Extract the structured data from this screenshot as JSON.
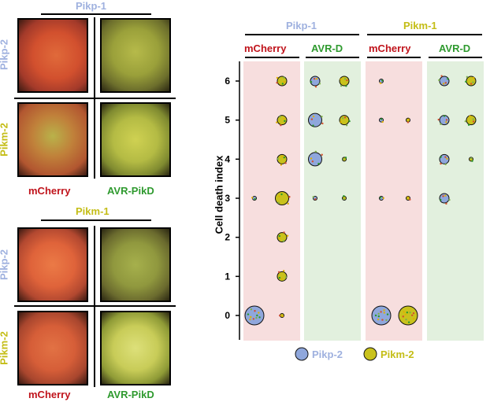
{
  "colors": {
    "pikp": "#9fb1df",
    "pikm": "#c4bd16",
    "mcherry": "#c0141c",
    "avr": "#2f9a2f",
    "mcherry_bg": "#f7dede",
    "avr_bg": "#e2f0de",
    "pikp_fill": "#8fa7dc",
    "pikm_fill": "#c9c21c"
  },
  "left_panels": {
    "top": {
      "title": "Pikp-1",
      "row1": "Pikp-2",
      "row2": "Pikm-2",
      "col1": "mCherry",
      "col2": "AVR-PikD"
    },
    "bottom": {
      "title": "Pikm-1",
      "row1": "Pikp-2",
      "row2": "Pikm-2",
      "col1": "mCherry",
      "col2": "AVR-PikD"
    }
  },
  "chart_data": {
    "type": "scatter",
    "ylabel": "Cell death index",
    "ylim": [
      0,
      6
    ],
    "yticks": [
      "0",
      "1",
      "2",
      "3",
      "4",
      "5",
      "6"
    ],
    "groups": [
      {
        "title": "Pikp-1",
        "subgroups": [
          "mCherry",
          "AVR-D"
        ]
      },
      {
        "title": "Pikm-1",
        "subgroups": [
          "mCherry",
          "AVR-D"
        ]
      }
    ],
    "legend": [
      "Pikp-2",
      "Pikm-2"
    ],
    "legend_position": "bottom",
    "columns": [
      {
        "group": "Pikp-1",
        "treatment": "mCherry",
        "receptor": "Pikp-2",
        "points": [
          {
            "y": 0,
            "size": "large"
          },
          {
            "y": 3,
            "size": "tiny"
          }
        ]
      },
      {
        "group": "Pikp-1",
        "treatment": "mCherry",
        "receptor": "Pikm-2",
        "points": [
          {
            "y": 0,
            "size": "tiny"
          },
          {
            "y": 1,
            "size": "small"
          },
          {
            "y": 2,
            "size": "small"
          },
          {
            "y": 3,
            "size": "medium"
          },
          {
            "y": 4,
            "size": "small"
          },
          {
            "y": 5,
            "size": "small"
          },
          {
            "y": 6,
            "size": "small"
          }
        ]
      },
      {
        "group": "Pikp-1",
        "treatment": "AVR-D",
        "receptor": "Pikp-2",
        "points": [
          {
            "y": 3,
            "size": "tiny"
          },
          {
            "y": 4,
            "size": "medium"
          },
          {
            "y": 5,
            "size": "medium"
          },
          {
            "y": 6,
            "size": "small"
          }
        ]
      },
      {
        "group": "Pikp-1",
        "treatment": "AVR-D",
        "receptor": "Pikm-2",
        "points": [
          {
            "y": 3,
            "size": "tiny"
          },
          {
            "y": 4,
            "size": "tiny"
          },
          {
            "y": 5,
            "size": "small"
          },
          {
            "y": 6,
            "size": "small"
          }
        ]
      },
      {
        "group": "Pikm-1",
        "treatment": "mCherry",
        "receptor": "Pikp-2",
        "points": [
          {
            "y": 0,
            "size": "large"
          },
          {
            "y": 3,
            "size": "tiny"
          },
          {
            "y": 5,
            "size": "tiny"
          },
          {
            "y": 6,
            "size": "tiny"
          }
        ]
      },
      {
        "group": "Pikm-1",
        "treatment": "mCherry",
        "receptor": "Pikm-2",
        "points": [
          {
            "y": 0,
            "size": "large"
          },
          {
            "y": 3,
            "size": "tiny"
          },
          {
            "y": 5,
            "size": "tiny"
          }
        ]
      },
      {
        "group": "Pikm-1",
        "treatment": "AVR-D",
        "receptor": "Pikp-2",
        "points": [
          {
            "y": 3,
            "size": "small"
          },
          {
            "y": 4,
            "size": "small"
          },
          {
            "y": 5,
            "size": "small"
          },
          {
            "y": 6,
            "size": "small"
          }
        ]
      },
      {
        "group": "Pikm-1",
        "treatment": "AVR-D",
        "receptor": "Pikm-2",
        "points": [
          {
            "y": 4,
            "size": "tiny"
          },
          {
            "y": 5,
            "size": "small"
          },
          {
            "y": 6,
            "size": "small"
          }
        ]
      }
    ]
  }
}
